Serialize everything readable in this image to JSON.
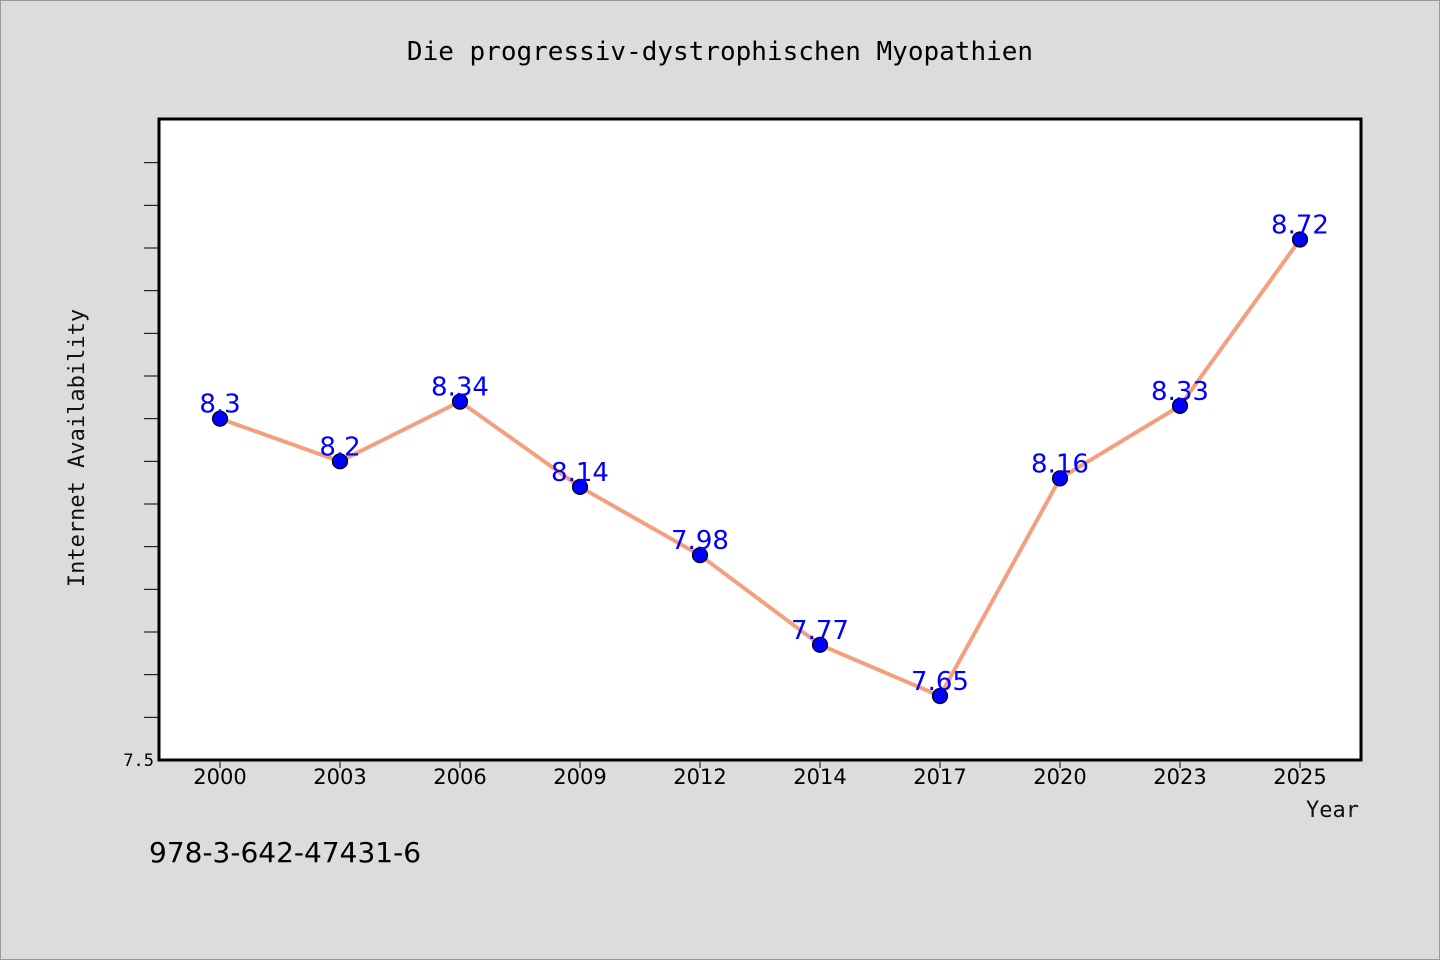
{
  "chart_data": {
    "type": "line",
    "title": "Die progressiv-dystrophischen Myopathien",
    "xlabel": "Year",
    "ylabel": "Internet Availability",
    "categories": [
      "2000",
      "2003",
      "2006",
      "2009",
      "2012",
      "2014",
      "2017",
      "2020",
      "2023",
      "2025"
    ],
    "series": [
      {
        "values": [
          8.3,
          8.2,
          8.34,
          8.14,
          7.98,
          7.77,
          7.65,
          8.16,
          8.33,
          8.72
        ]
      }
    ],
    "data_labels": [
      "8.3",
      "8.2",
      "8.34",
      "8.14",
      "7.98",
      "7.77",
      "7.65",
      "8.16",
      "8.33",
      "8.72"
    ],
    "ylim": [
      7.5,
      9.0
    ],
    "yticks": [
      {
        "value": 7.5,
        "label": "7.5"
      }
    ],
    "grid": false,
    "colors": {
      "line": "#f4a07e",
      "marker": "#0000ff",
      "data_label": "#0000ff",
      "background": "#dcdcdc",
      "plot_area": "#ffffff"
    }
  },
  "footnote": "978-3-642-47431-6"
}
